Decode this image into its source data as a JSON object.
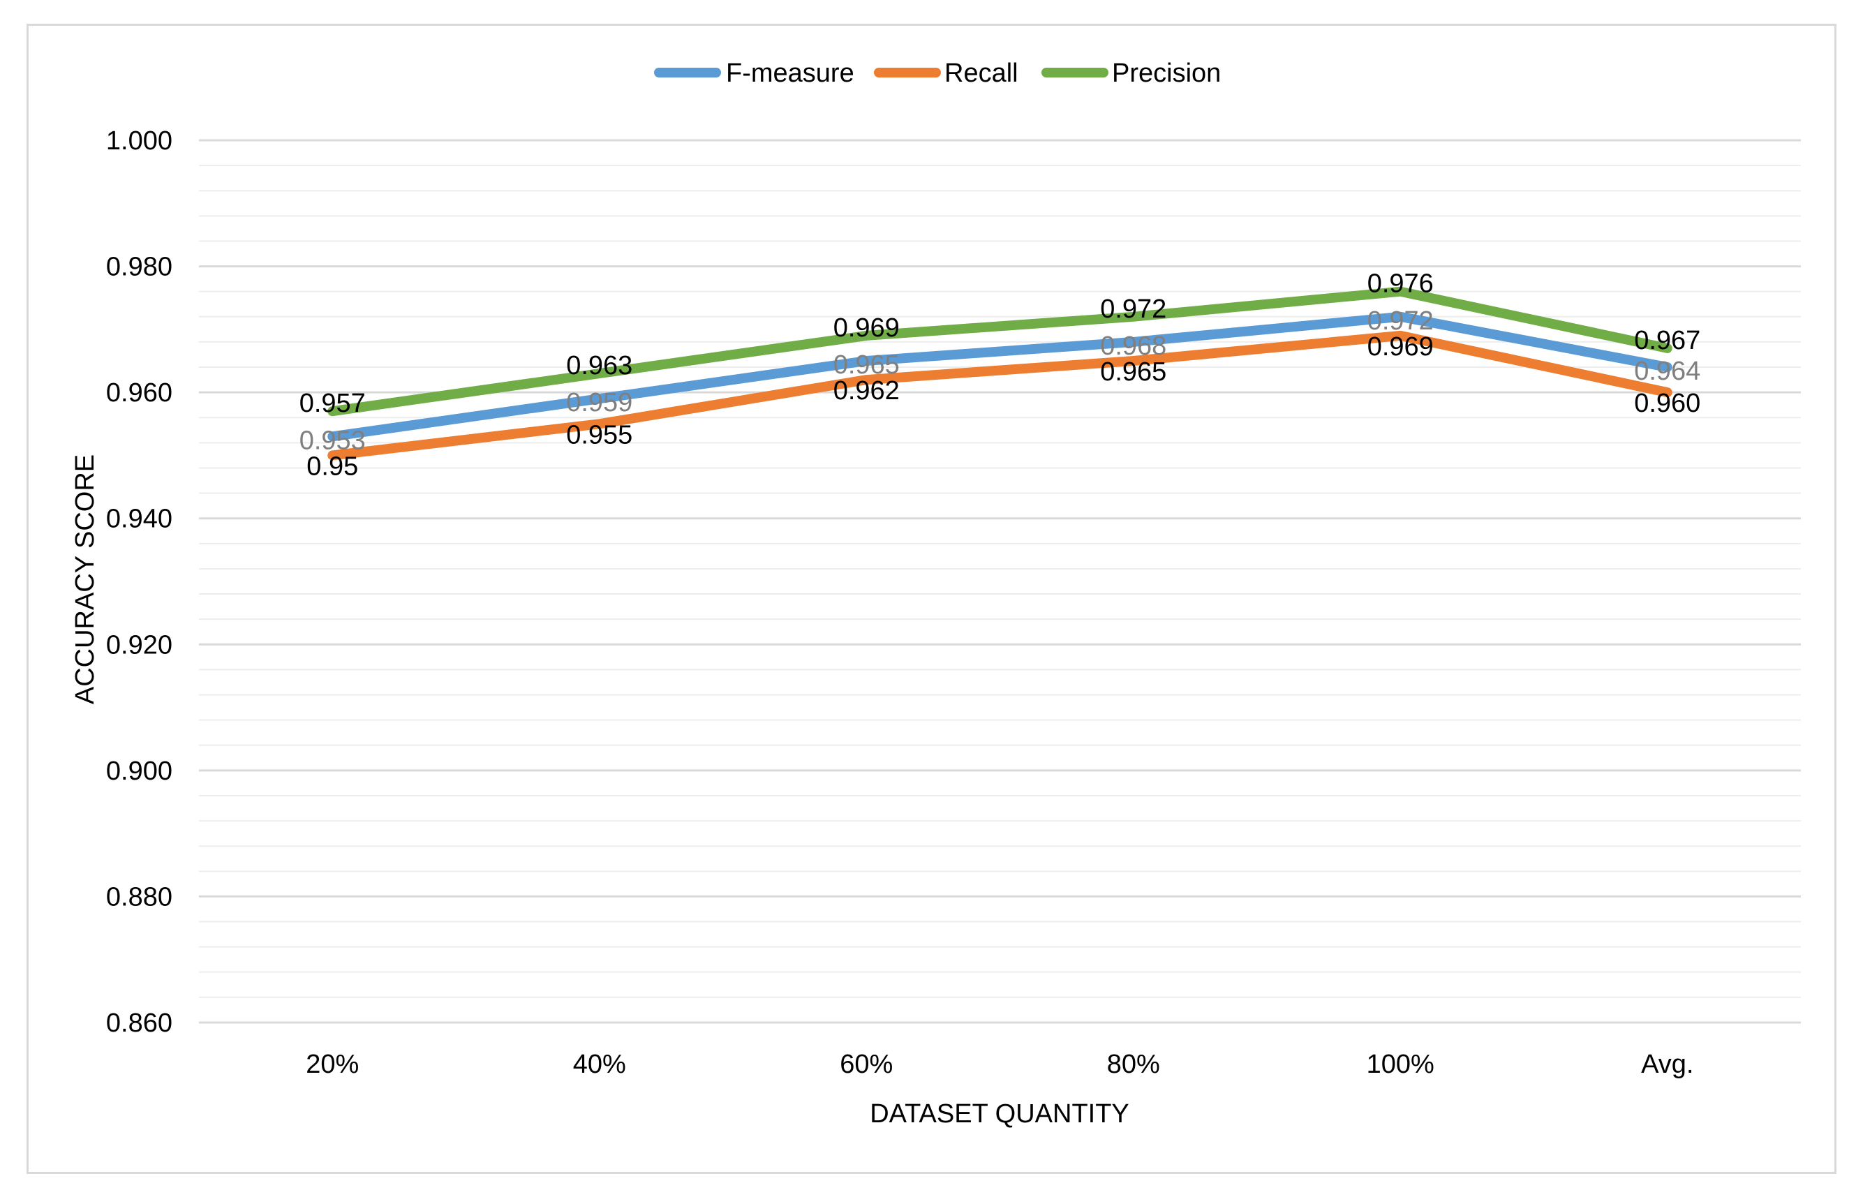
{
  "chart_data": {
    "type": "line",
    "title": "",
    "xlabel": "DATASET QUANTITY",
    "ylabel": "ACCURACY SCORE",
    "categories": [
      "20%",
      "40%",
      "60%",
      "80%",
      "100%",
      "Avg."
    ],
    "ylim": [
      0.86,
      1.0
    ],
    "yticks": [
      0.86,
      0.88,
      0.9,
      0.92,
      0.94,
      0.96,
      0.98,
      1.0
    ],
    "ytick_labels": [
      "0.860",
      "0.880",
      "0.900",
      "0.920",
      "0.940",
      "0.960",
      "0.980",
      "1.000"
    ],
    "grid": true,
    "legend_position": "top-center",
    "series": [
      {
        "name": "F-measure",
        "color": "#5b9bd5",
        "label_color": "#7f7f7f",
        "values": [
          0.953,
          0.959,
          0.965,
          0.968,
          0.972,
          0.964
        ],
        "labels": [
          "0.953",
          "0.959",
          "0.965",
          "0.968",
          "0.972",
          "0.964"
        ]
      },
      {
        "name": "Recall",
        "color": "#ed7d31",
        "label_color": "#000000",
        "values": [
          0.95,
          0.955,
          0.962,
          0.965,
          0.969,
          0.96
        ],
        "labels": [
          "0.95",
          "0.955",
          "0.962",
          "0.965",
          "0.969",
          "0.960"
        ]
      },
      {
        "name": "Precision",
        "color": "#70ad47",
        "label_color": "#000000",
        "values": [
          0.957,
          0.963,
          0.969,
          0.972,
          0.976,
          0.967
        ],
        "labels": [
          "0.957",
          "0.963",
          "0.969",
          "0.972",
          "0.976",
          "0.967"
        ]
      }
    ]
  }
}
